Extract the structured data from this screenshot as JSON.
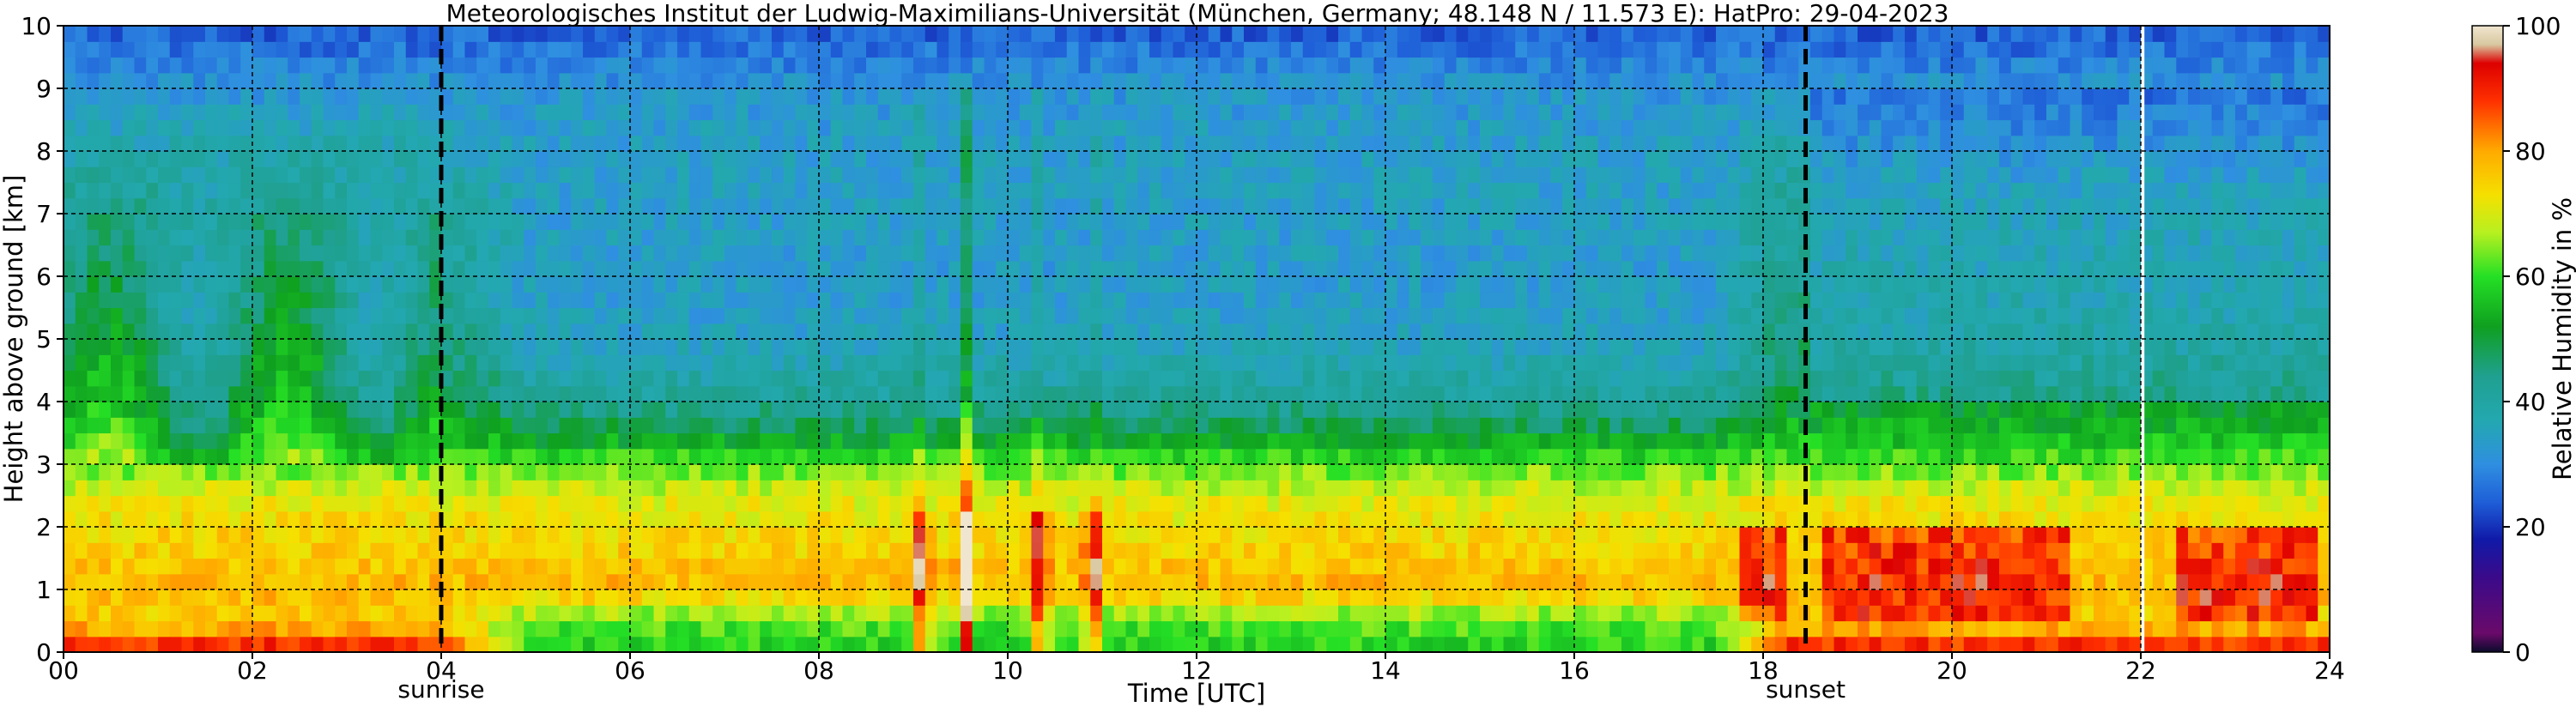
{
  "chart_data": {
    "type": "heatmap",
    "title": "Meteorologisches Institut der Ludwig-Maximilians-Universität (München, Germany; 48.148 N / 11.573 E):    HatPro: 29-04-2023",
    "xlabel": "Time [UTC]",
    "ylabel": "Height above ground [km]",
    "xlim": [
      0,
      24
    ],
    "ylim": [
      0,
      10
    ],
    "x_ticks": [
      "00",
      "02",
      "04",
      "06",
      "08",
      "10",
      "12",
      "14",
      "16",
      "18",
      "20",
      "22",
      "24"
    ],
    "y_ticks": [
      "0",
      "1",
      "2",
      "3",
      "4",
      "5",
      "6",
      "7",
      "8",
      "9",
      "10"
    ],
    "grid": true,
    "colorbar": {
      "label": "Relative Humidity in %",
      "range": [
        0,
        100
      ],
      "ticks": [
        "0",
        "20",
        "40",
        "60",
        "80",
        "100"
      ],
      "stops": [
        {
          "v": 0,
          "color": "#0b0b2b"
        },
        {
          "v": 3,
          "color": "#6a0a6a"
        },
        {
          "v": 12,
          "color": "#3a0a8a"
        },
        {
          "v": 18,
          "color": "#101aa8"
        },
        {
          "v": 24,
          "color": "#1f5fd8"
        },
        {
          "v": 30,
          "color": "#2f8fe0"
        },
        {
          "v": 37,
          "color": "#23a8b0"
        },
        {
          "v": 44,
          "color": "#1fa090"
        },
        {
          "v": 52,
          "color": "#0fa020"
        },
        {
          "v": 60,
          "color": "#25e025"
        },
        {
          "v": 67,
          "color": "#b8f020"
        },
        {
          "v": 73,
          "color": "#f5e000"
        },
        {
          "v": 80,
          "color": "#ffaa00"
        },
        {
          "v": 88,
          "color": "#ff3000"
        },
        {
          "v": 94,
          "color": "#dd0000"
        },
        {
          "v": 97,
          "color": "#d8c8a0"
        },
        {
          "v": 100,
          "color": "#f0e6d0"
        }
      ]
    },
    "events": [
      {
        "time": 4.0,
        "label": "sunrise"
      },
      {
        "time": 18.45,
        "label": "sunset"
      }
    ],
    "data_gap_time": 22.02,
    "rh_profile_typical": {
      "height_km": [
        0.0,
        0.5,
        1.0,
        1.5,
        2.0,
        2.5,
        3.0,
        3.5,
        4.0,
        5.0,
        6.0,
        7.0,
        8.0,
        9.0,
        9.7,
        10.0
      ],
      "night_rh": [
        93,
        75,
        78,
        76,
        74,
        71,
        62,
        55,
        50,
        45,
        43,
        42,
        38,
        32,
        26,
        24
      ],
      "day_rh": [
        58,
        62,
        78,
        76,
        73,
        70,
        62,
        50,
        42,
        35,
        33,
        34,
        34,
        32,
        26,
        24
      ]
    },
    "moist_bursts_time": [
      9.1,
      9.55,
      10.35,
      10.9
    ],
    "high_moisture_periods": [
      [
        17.8,
        18.2
      ],
      [
        18.6,
        21.2
      ],
      [
        22.4,
        23.9
      ]
    ]
  }
}
